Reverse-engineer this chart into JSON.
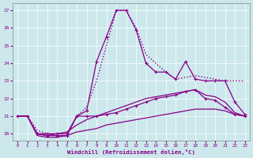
{
  "xlabel": "Windchill (Refroidissement éolien,°C)",
  "bg_color": "#cce8ec",
  "line_color": "#880088",
  "ylim": [
    19.6,
    27.4
  ],
  "xlim": [
    -0.5,
    23.5
  ],
  "yticks": [
    20,
    21,
    22,
    23,
    24,
    25,
    26,
    27
  ],
  "xticks": [
    0,
    1,
    2,
    3,
    4,
    5,
    6,
    7,
    8,
    9,
    10,
    11,
    12,
    13,
    14,
    15,
    16,
    17,
    18,
    19,
    20,
    21,
    22,
    23
  ],
  "series": [
    {
      "x": [
        0,
        1,
        2,
        3,
        4,
        5,
        6,
        7,
        8,
        9,
        10,
        11,
        12,
        13,
        14,
        15,
        16,
        17,
        18,
        19,
        20,
        21,
        22,
        23
      ],
      "y": [
        21,
        21,
        20.2,
        20.0,
        19.9,
        19.9,
        21.0,
        21.5,
        23.0,
        25.0,
        27.0,
        27.0,
        26.0,
        24.5,
        24.0,
        23.5,
        23.1,
        23.2,
        23.3,
        23.2,
        23.1,
        23.0,
        23.0,
        23.0
      ],
      "style": "dotted",
      "marker": null,
      "lw": 1.0
    },
    {
      "x": [
        2,
        3,
        4,
        5,
        6,
        7,
        8,
        9,
        10,
        11,
        12,
        13,
        14,
        15,
        16,
        17,
        18,
        19,
        20,
        21,
        22,
        23
      ],
      "y": [
        20.0,
        19.9,
        19.9,
        19.9,
        21.0,
        21.3,
        24.1,
        25.5,
        27.0,
        27.0,
        25.9,
        24.0,
        23.5,
        23.5,
        23.1,
        24.1,
        23.1,
        23.0,
        23.0,
        23.0,
        21.8,
        21.1
      ],
      "style": "solid",
      "marker": "+",
      "lw": 0.9
    },
    {
      "x": [
        0,
        1,
        2,
        3,
        4,
        5,
        6,
        7,
        8,
        9,
        10,
        11,
        12,
        13,
        14,
        15,
        16,
        17,
        18,
        19,
        20,
        21,
        22,
        23
      ],
      "y": [
        21.0,
        21.0,
        20.0,
        20.0,
        20.0,
        20.0,
        21.0,
        21.0,
        21.0,
        21.1,
        21.2,
        21.4,
        21.6,
        21.8,
        22.0,
        22.1,
        22.2,
        22.4,
        22.5,
        22.0,
        21.9,
        21.5,
        21.1,
        21.0
      ],
      "style": "solid",
      "marker": "+",
      "lw": 0.9
    },
    {
      "x": [
        0,
        1,
        2,
        3,
        4,
        5,
        6,
        7,
        8,
        9,
        10,
        11,
        12,
        13,
        14,
        15,
        16,
        17,
        18,
        19,
        20,
        21,
        22,
        23
      ],
      "y": [
        21.0,
        21.0,
        20.0,
        19.9,
        20.0,
        20.1,
        20.5,
        20.8,
        21.0,
        21.2,
        21.4,
        21.6,
        21.8,
        22.0,
        22.1,
        22.2,
        22.3,
        22.4,
        22.5,
        22.2,
        22.1,
        21.8,
        21.2,
        21.0
      ],
      "style": "solid",
      "marker": null,
      "lw": 0.9
    },
    {
      "x": [
        0,
        1,
        2,
        3,
        4,
        5,
        6,
        7,
        8,
        9,
        10,
        11,
        12,
        13,
        14,
        15,
        16,
        17,
        18,
        19,
        20,
        21,
        22,
        23
      ],
      "y": [
        21.0,
        21.0,
        19.9,
        19.8,
        19.8,
        19.9,
        20.1,
        20.2,
        20.3,
        20.5,
        20.6,
        20.7,
        20.8,
        20.9,
        21.0,
        21.1,
        21.2,
        21.3,
        21.4,
        21.4,
        21.4,
        21.3,
        21.1,
        21.0
      ],
      "style": "solid",
      "marker": null,
      "lw": 0.9
    }
  ]
}
